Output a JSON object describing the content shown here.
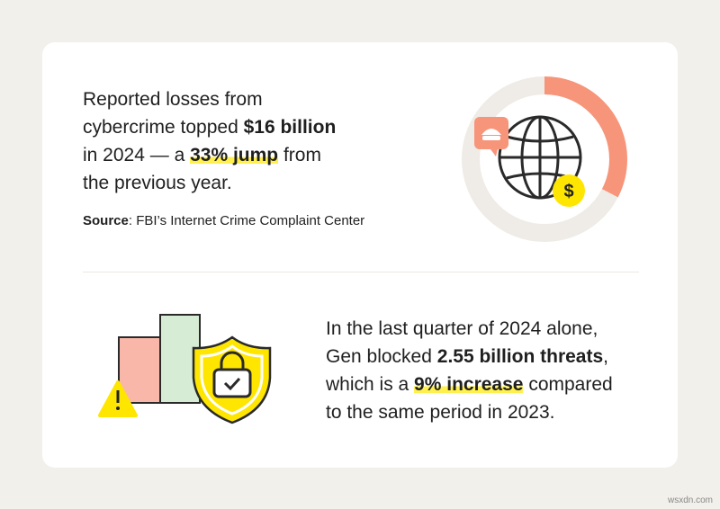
{
  "stat_1": {
    "lines": [
      [
        "Reported losses from"
      ],
      [
        "cybercrime topped",
        "$16 billion"
      ],
      [
        "in 2024 — a",
        "33% jump",
        "from"
      ],
      [
        "the previous year."
      ]
    ],
    "source_label": "Source",
    "source_text": ": FBI’s Internet Crime Complaint Center"
  },
  "stat_2": {
    "lines": [
      [
        "In the last quarter of 2024 alone,"
      ],
      [
        "Gen blocked",
        "2.55 billion threats",
        ","
      ],
      [
        "which is a",
        "9% increase",
        "compared"
      ],
      [
        "to the same period in 2023."
      ]
    ]
  },
  "watermark": "wsxdn.com"
}
